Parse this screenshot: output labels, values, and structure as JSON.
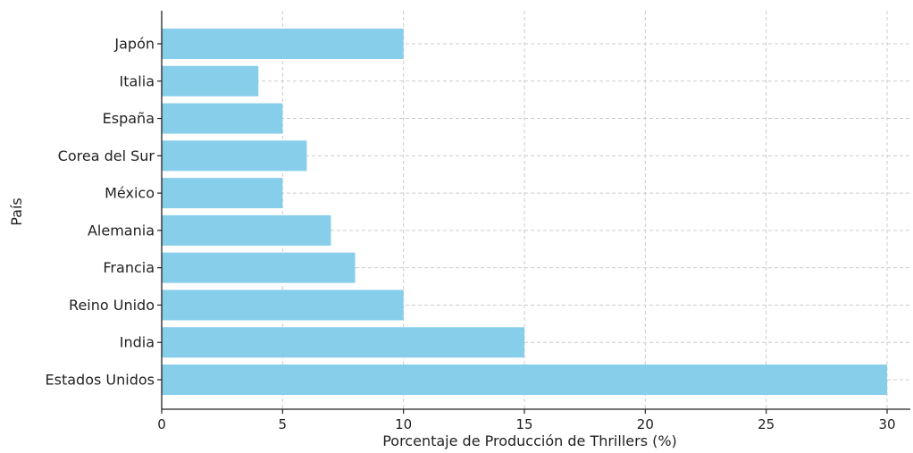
{
  "chart_data": {
    "type": "bar",
    "orientation": "horizontal",
    "title": "",
    "xlabel": "Porcentaje de Producción de Thrillers (%)",
    "ylabel": "País",
    "categories": [
      "Estados Unidos",
      "India",
      "Reino Unido",
      "Francia",
      "Alemania",
      "México",
      "Corea del Sur",
      "España",
      "Italia",
      "Japón"
    ],
    "values": [
      30,
      15,
      10,
      8,
      7,
      5,
      6,
      5,
      4,
      10
    ],
    "xlim": [
      0,
      31
    ],
    "xticks": [
      0,
      5,
      10,
      15,
      20,
      25,
      30
    ],
    "grid": true,
    "legend": "none",
    "bar_color": "#87ceeb",
    "grid_color": "#cccccc"
  }
}
